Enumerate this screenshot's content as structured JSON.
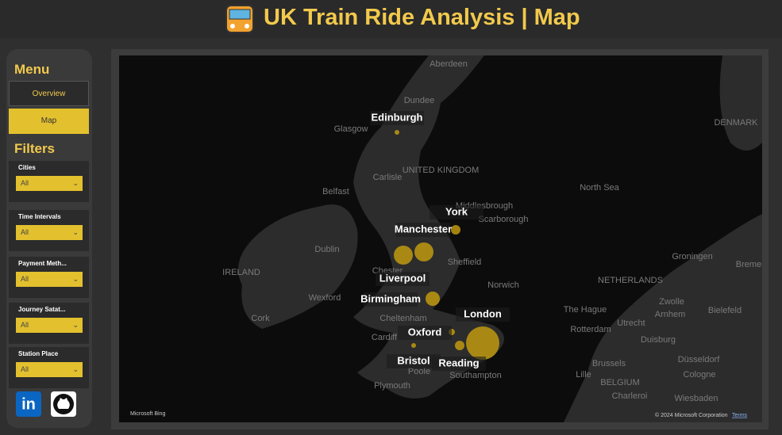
{
  "header": {
    "title": "UK Train Ride Analysis | Map"
  },
  "menu": {
    "title": "Menu",
    "items": [
      "Overview",
      "Map"
    ]
  },
  "filters": {
    "title": "Filters",
    "items": [
      {
        "label": "Cities",
        "value": "All"
      },
      {
        "label": "Time Intervals",
        "value": "All"
      },
      {
        "label": "Payment Meth...",
        "value": "All"
      },
      {
        "label": "Journey Satat...",
        "value": "All"
      },
      {
        "label": "Station Place",
        "value": "All"
      }
    ]
  },
  "social": {
    "linkedin": "in"
  },
  "map": {
    "stations": [
      "Edinburgh",
      "York",
      "Manchester",
      "Liverpool",
      "Birmingham",
      "London",
      "Oxford",
      "Bristol",
      "Reading"
    ],
    "places": [
      "Aberdeen",
      "Dundee",
      "Glasgow",
      "Carlisle",
      "UNITED KINGDOM",
      "Belfast",
      "Middlesbrough",
      "Scarborough",
      "North Sea",
      "DENMARK",
      "Dublin",
      "IRELAND",
      "Sheffield",
      "Chester",
      "Norwich",
      "Wexford",
      "Cork",
      "Cheltenham",
      "Cardiff",
      "Plymouth",
      "Southampton",
      "Poole",
      "NETHERLANDS",
      "The Hague",
      "Rotterdam",
      "Groningen",
      "Bremen",
      "Zwolle",
      "Arnhem",
      "Bielefeld",
      "Utrecht",
      "Duisburg",
      "Brussels",
      "Düsseldorf",
      "Cologne",
      "BELGIUM",
      "Charleroi",
      "Wiesbaden",
      "Lille"
    ],
    "credits": [
      "Microsoft Bing",
      "© 2024 Microsoft Corporation",
      "Terms"
    ]
  }
}
